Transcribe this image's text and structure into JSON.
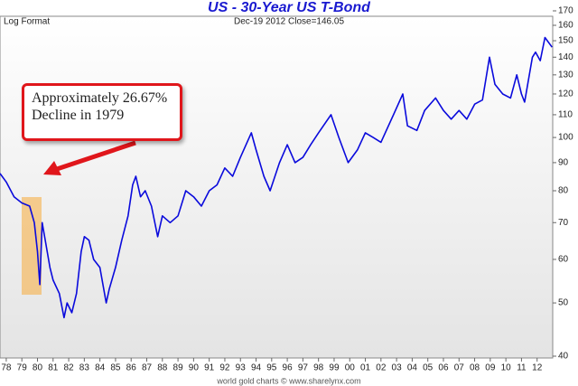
{
  "chart_data": {
    "type": "line",
    "title": "US  -  30-Year US T-Bond",
    "subtitle": "Dec-19 2012  Close=146.05",
    "scale_label": "Log Format",
    "annotation": "Approximately 26.67% Decline in 1979",
    "footer": "world gold charts © www.sharelynx.com",
    "log_scale": true,
    "grid": false,
    "xlim": [
      1977.6,
      2013.0
    ],
    "xticks": [
      {
        "value": 1978,
        "label": "78"
      },
      {
        "value": 1979,
        "label": "79"
      },
      {
        "value": 1980,
        "label": "80"
      },
      {
        "value": 1981,
        "label": "81"
      },
      {
        "value": 1982,
        "label": "82"
      },
      {
        "value": 1983,
        "label": "83"
      },
      {
        "value": 1984,
        "label": "84"
      },
      {
        "value": 1985,
        "label": "85"
      },
      {
        "value": 1986,
        "label": "86"
      },
      {
        "value": 1987,
        "label": "87"
      },
      {
        "value": 1988,
        "label": "88"
      },
      {
        "value": 1989,
        "label": "89"
      },
      {
        "value": 1990,
        "label": "90"
      },
      {
        "value": 1991,
        "label": "91"
      },
      {
        "value": 1992,
        "label": "92"
      },
      {
        "value": 1993,
        "label": "93"
      },
      {
        "value": 1994,
        "label": "94"
      },
      {
        "value": 1995,
        "label": "95"
      },
      {
        "value": 1996,
        "label": "96"
      },
      {
        "value": 1997,
        "label": "97"
      },
      {
        "value": 1998,
        "label": "98"
      },
      {
        "value": 1999,
        "label": "99"
      },
      {
        "value": 2000,
        "label": "00"
      },
      {
        "value": 2001,
        "label": "01"
      },
      {
        "value": 2002,
        "label": "02"
      },
      {
        "value": 2003,
        "label": "03"
      },
      {
        "value": 2004,
        "label": "04"
      },
      {
        "value": 2005,
        "label": "05"
      },
      {
        "value": 2006,
        "label": "06"
      },
      {
        "value": 2007,
        "label": "07"
      },
      {
        "value": 2008,
        "label": "08"
      },
      {
        "value": 2009,
        "label": "09"
      },
      {
        "value": 2010,
        "label": "10"
      },
      {
        "value": 2011,
        "label": "11"
      },
      {
        "value": 2012,
        "label": "12"
      }
    ],
    "ylim": [
      40,
      170
    ],
    "yticks": [
      40,
      50,
      60,
      70,
      80,
      90,
      100,
      110,
      120,
      130,
      140,
      150,
      160,
      170
    ],
    "series": [
      {
        "color": "#0a0adc",
        "x": [
          1977.6,
          1978.0,
          1978.5,
          1979.0,
          1979.5,
          1979.8,
          1980.0,
          1980.15,
          1980.3,
          1980.5,
          1980.8,
          1981.0,
          1981.4,
          1981.7,
          1981.9,
          1982.2,
          1982.5,
          1982.8,
          1983.0,
          1983.3,
          1983.6,
          1984.0,
          1984.4,
          1984.6,
          1985.0,
          1985.4,
          1985.8,
          1986.1,
          1986.3,
          1986.6,
          1986.9,
          1987.3,
          1987.7,
          1988.0,
          1988.5,
          1989.0,
          1989.5,
          1990.0,
          1990.5,
          1991.0,
          1991.5,
          1992.0,
          1992.5,
          1993.0,
          1993.7,
          1994.0,
          1994.5,
          1994.9,
          1995.5,
          1996.0,
          1996.5,
          1997.0,
          1997.5,
          1998.0,
          1998.8,
          1999.3,
          1999.9,
          2000.5,
          2001.0,
          2001.5,
          2002.0,
          2002.8,
          2003.4,
          2003.7,
          2004.3,
          2004.8,
          2005.5,
          2006.0,
          2006.5,
          2007.0,
          2007.5,
          2008.0,
          2008.5,
          2008.95,
          2009.3,
          2009.8,
          2010.3,
          2010.7,
          2011.0,
          2011.2,
          2011.7,
          2011.9,
          2012.2,
          2012.5,
          2012.96
        ],
        "values": [
          86,
          83,
          78,
          76,
          75,
          70,
          62,
          54,
          70,
          65,
          58,
          55,
          52,
          47,
          50,
          48,
          52,
          62,
          66,
          65,
          60,
          58,
          50,
          53,
          58,
          65,
          72,
          82,
          85,
          78,
          80,
          75,
          66,
          72,
          70,
          72,
          80,
          78,
          75,
          80,
          82,
          88,
          85,
          92,
          102,
          95,
          85,
          80,
          90,
          97,
          90,
          92,
          97,
          102,
          110,
          100,
          90,
          95,
          102,
          100,
          98,
          110,
          120,
          105,
          103,
          112,
          118,
          112,
          108,
          112,
          108,
          115,
          117,
          140,
          125,
          120,
          118,
          130,
          120,
          116,
          140,
          143,
          138,
          152,
          146
        ]
      }
    ]
  }
}
